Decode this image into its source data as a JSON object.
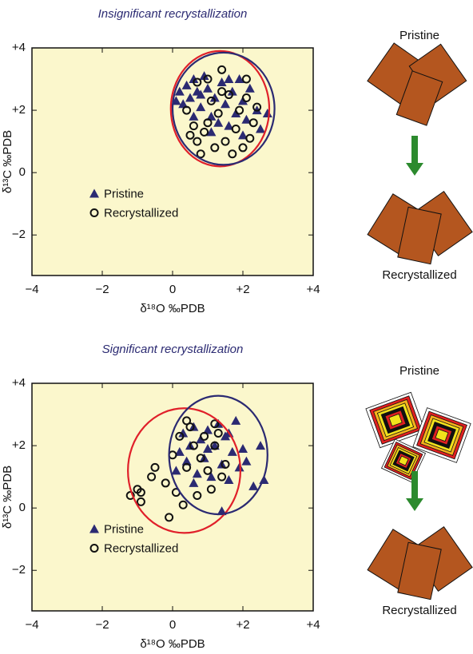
{
  "chart_data": [
    {
      "type": "scatter",
      "title": "Insignificant recrystallization",
      "x_label": "δ¹⁸O ‰PDB",
      "y_label": "δ¹³C ‰PDB",
      "xlim": [
        -4,
        4
      ],
      "ylim": [
        -3.3,
        4
      ],
      "xticks": [
        {
          "value": -4,
          "label": "−4"
        },
        {
          "value": -2,
          "label": "−2"
        },
        0,
        {
          "value": 2,
          "label": "+2"
        },
        {
          "value": 4,
          "label": "+4"
        }
      ],
      "yticks": [
        {
          "value": -2,
          "label": "−2"
        },
        0,
        {
          "value": 2,
          "label": "+2"
        },
        {
          "value": 4,
          "label": "+4"
        }
      ],
      "background": "#fbf7cc",
      "legend": "center left",
      "series": [
        {
          "name": "Pristine",
          "marker": "triangle",
          "color": "#2b2a72",
          "legend_text_color": "#111111",
          "x": [
            0.1,
            0.2,
            0.3,
            0.4,
            0.5,
            0.6,
            0.7,
            0.8,
            0.9,
            1.0,
            1.1,
            1.2,
            1.3,
            1.4,
            1.5,
            1.6,
            1.7,
            1.8,
            1.9,
            2.0,
            2.1,
            2.2,
            2.4,
            2.5,
            2.7,
            1.1,
            0.6,
            1.6,
            2.0,
            0.8
          ],
          "values": [
            2.3,
            2.6,
            2.2,
            2.8,
            2.4,
            3.0,
            2.6,
            2.1,
            3.1,
            2.7,
            1.8,
            2.4,
            1.6,
            2.9,
            2.2,
            1.5,
            2.6,
            1.9,
            3.0,
            2.3,
            1.7,
            2.7,
            2.0,
            1.4,
            1.9,
            1.3,
            1.8,
            3.0,
            1.2,
            2.5
          ]
        },
        {
          "name": "Recrystallized",
          "marker": "circle",
          "color": "#111111",
          "legend_text_color": "#e0202a",
          "x": [
            0.4,
            0.6,
            0.7,
            0.8,
            0.9,
            1.0,
            1.1,
            1.2,
            1.3,
            1.4,
            1.5,
            1.6,
            1.7,
            1.8,
            1.9,
            2.0,
            2.1,
            2.2,
            2.3,
            2.4,
            0.5,
            1.0,
            1.4,
            2.1,
            0.7
          ],
          "values": [
            2.0,
            1.5,
            1.0,
            0.6,
            1.3,
            3.0,
            2.3,
            0.8,
            1.9,
            3.3,
            1.0,
            2.5,
            0.6,
            1.4,
            2.0,
            0.8,
            2.4,
            1.1,
            1.6,
            2.1,
            1.2,
            1.6,
            2.6,
            3.0,
            2.9
          ]
        }
      ],
      "ellipses": [
        {
          "color": "#e0202a",
          "center": [
            1.35,
            2.05
          ],
          "radii": [
            1.4,
            1.85
          ]
        },
        {
          "color": "#2b2a72",
          "center": [
            1.45,
            2.05
          ],
          "radii": [
            1.45,
            1.8
          ]
        }
      ],
      "diagram_before": "Pristine",
      "diagram_after": "Recrystallized"
    },
    {
      "type": "scatter",
      "title": "Significant recrystallization",
      "x_label": "δ¹⁸O ‰PDB",
      "y_label": "δ¹³C ‰PDB",
      "xlim": [
        -4,
        4
      ],
      "ylim": [
        -3.3,
        4
      ],
      "xticks": [
        {
          "value": -4,
          "label": "−4"
        },
        {
          "value": -2,
          "label": "−2"
        },
        0,
        {
          "value": 2,
          "label": "+2"
        },
        {
          "value": 4,
          "label": "+4"
        }
      ],
      "yticks": [
        {
          "value": -2,
          "label": "−2"
        },
        0,
        {
          "value": 2,
          "label": "+2"
        },
        {
          "value": 4,
          "label": "+4"
        }
      ],
      "background": "#fbf7cc",
      "legend": "center left",
      "series": [
        {
          "name": "Pristine",
          "marker": "triangle",
          "color": "#2b2a72",
          "legend_text_color": "#2b2a72",
          "x": [
            0.1,
            0.2,
            0.3,
            0.4,
            0.5,
            0.6,
            0.7,
            0.8,
            0.9,
            1.0,
            1.1,
            1.2,
            1.3,
            1.4,
            1.5,
            1.6,
            1.7,
            1.8,
            1.9,
            2.0,
            2.1,
            2.3,
            2.5,
            2.6,
            1.4,
            0.6,
            1.0,
            1.6
          ],
          "values": [
            1.2,
            1.8,
            2.4,
            1.5,
            2.0,
            2.6,
            1.1,
            2.2,
            1.6,
            2.5,
            1.0,
            2.0,
            2.7,
            1.4,
            2.3,
            0.9,
            1.8,
            2.8,
            1.3,
            1.9,
            1.5,
            0.7,
            2.0,
            0.9,
            -0.1,
            0.8,
            1.9,
            2.4
          ]
        },
        {
          "name": "Recrystallized",
          "marker": "circle",
          "color": "#111111",
          "legend_text_color": "#e0202a",
          "x": [
            -1.2,
            -1.0,
            -0.9,
            -0.9,
            -0.6,
            -0.5,
            -0.2,
            -0.1,
            0.0,
            0.1,
            0.2,
            0.3,
            0.4,
            0.5,
            0.6,
            0.7,
            0.8,
            0.9,
            1.0,
            1.1,
            1.2,
            1.3,
            1.4,
            1.5,
            1.2,
            0.4
          ],
          "values": [
            0.4,
            0.6,
            0.5,
            0.2,
            1.0,
            1.3,
            0.8,
            -0.3,
            1.7,
            0.5,
            2.3,
            0.1,
            1.3,
            2.6,
            2.0,
            0.4,
            1.6,
            2.3,
            1.2,
            0.6,
            2.0,
            2.4,
            1.0,
            1.4,
            2.7,
            2.8
          ]
        }
      ],
      "ellipses": [
        {
          "color": "#e0202a",
          "center": [
            0.33,
            1.2
          ],
          "radii": [
            1.6,
            2.0
          ]
        },
        {
          "color": "#2b2a72",
          "center": [
            1.3,
            1.7
          ],
          "radii": [
            1.4,
            1.9
          ]
        }
      ],
      "diagram_before": "Pristine",
      "diagram_after": "Recrystallized"
    }
  ]
}
